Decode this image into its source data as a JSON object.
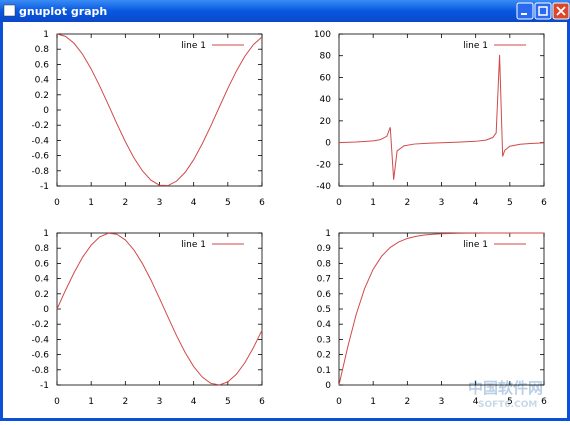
{
  "window": {
    "title": "gnuplot graph"
  },
  "watermark": {
    "text": "中国软件网",
    "subtext": "SOFT6.COM"
  },
  "chart_data": [
    {
      "type": "line",
      "x": [
        0,
        0.25,
        0.5,
        0.75,
        1,
        1.25,
        1.5,
        1.75,
        2,
        2.25,
        2.5,
        2.75,
        3,
        3.25,
        3.5,
        3.75,
        4,
        4.25,
        4.5,
        4.75,
        5,
        5.25,
        5.5,
        5.75,
        6
      ],
      "series": [
        {
          "name": "line 1",
          "color": "#d04a4a",
          "values": [
            1,
            0.969,
            0.878,
            0.732,
            0.54,
            0.315,
            0.071,
            -0.178,
            -0.416,
            -0.628,
            -0.801,
            -0.924,
            -0.99,
            -0.994,
            -0.936,
            -0.821,
            -0.654,
            -0.446,
            -0.211,
            0.038,
            0.284,
            0.512,
            0.709,
            0.861,
            0.96
          ]
        }
      ],
      "xlim": [
        0,
        6
      ],
      "ylim": [
        -1,
        1
      ],
      "xticks": [
        0,
        1,
        2,
        3,
        4,
        5,
        6
      ],
      "yticks": [
        -1,
        -0.8,
        -0.6,
        -0.4,
        -0.2,
        0,
        0.2,
        0.4,
        0.6,
        0.8,
        1
      ]
    },
    {
      "type": "line",
      "x": [
        0,
        0.5,
        1,
        1.2,
        1.4,
        1.5,
        1.6,
        1.7,
        1.9,
        2.2,
        2.6,
        3,
        3.5,
        4,
        4.3,
        4.5,
        4.6,
        4.7,
        4.79,
        4.85,
        5,
        5.3,
        5.6,
        6
      ],
      "series": [
        {
          "name": "line 1",
          "color": "#d04a4a",
          "values": [
            0,
            0.55,
            1.56,
            2.57,
            5.8,
            14.1,
            -34.2,
            -7.7,
            -3.0,
            -1.37,
            -0.6,
            -0.14,
            0.37,
            1.16,
            2.29,
            4.64,
            8.86,
            80.7,
            -12.8,
            -7.2,
            -3.38,
            -1.56,
            -0.81,
            -0.29
          ]
        }
      ],
      "xlim": [
        0,
        6
      ],
      "ylim": [
        -40,
        100
      ],
      "xticks": [
        0,
        1,
        2,
        3,
        4,
        5,
        6
      ],
      "yticks": [
        -40,
        -20,
        0,
        20,
        40,
        60,
        80,
        100
      ]
    },
    {
      "type": "line",
      "x": [
        0,
        0.25,
        0.5,
        0.75,
        1,
        1.25,
        1.5,
        1.75,
        2,
        2.25,
        2.5,
        2.75,
        3,
        3.25,
        3.5,
        3.75,
        4,
        4.25,
        4.5,
        4.75,
        5,
        5.25,
        5.5,
        5.75,
        6
      ],
      "series": [
        {
          "name": "line 1",
          "color": "#d04a4a",
          "values": [
            0,
            0.247,
            0.479,
            0.682,
            0.841,
            0.949,
            0.997,
            0.984,
            0.909,
            0.778,
            0.598,
            0.382,
            0.141,
            -0.108,
            -0.351,
            -0.572,
            -0.757,
            -0.895,
            -0.978,
            -0.999,
            -0.959,
            -0.859,
            -0.706,
            -0.508,
            -0.279
          ]
        }
      ],
      "xlim": [
        0,
        6
      ],
      "ylim": [
        -1,
        1
      ],
      "xticks": [
        0,
        1,
        2,
        3,
        4,
        5,
        6
      ],
      "yticks": [
        -1,
        -0.8,
        -0.6,
        -0.4,
        -0.2,
        0,
        0.2,
        0.4,
        0.6,
        0.8,
        1
      ]
    },
    {
      "type": "line",
      "x": [
        0,
        0.25,
        0.5,
        0.75,
        1,
        1.25,
        1.5,
        1.75,
        2,
        2.25,
        2.5,
        2.75,
        3,
        3.25,
        3.5,
        3.75,
        4,
        4.25,
        4.5,
        4.75,
        5,
        5.25,
        5.5,
        5.75,
        6
      ],
      "series": [
        {
          "name": "line 1",
          "color": "#d04a4a",
          "values": [
            0,
            0.245,
            0.462,
            0.635,
            0.762,
            0.848,
            0.905,
            0.941,
            0.964,
            0.978,
            0.987,
            0.992,
            0.995,
            0.997,
            0.998,
            0.999,
            0.9993,
            0.9996,
            0.9997,
            0.9998,
            0.9999,
            0.9999,
            1,
            1,
            1
          ]
        }
      ],
      "xlim": [
        0,
        6
      ],
      "ylim": [
        0,
        1
      ],
      "xticks": [
        0,
        1,
        2,
        3,
        4,
        5,
        6
      ],
      "yticks": [
        0,
        0.1,
        0.2,
        0.3,
        0.4,
        0.5,
        0.6,
        0.7,
        0.8,
        0.9,
        1
      ]
    }
  ]
}
